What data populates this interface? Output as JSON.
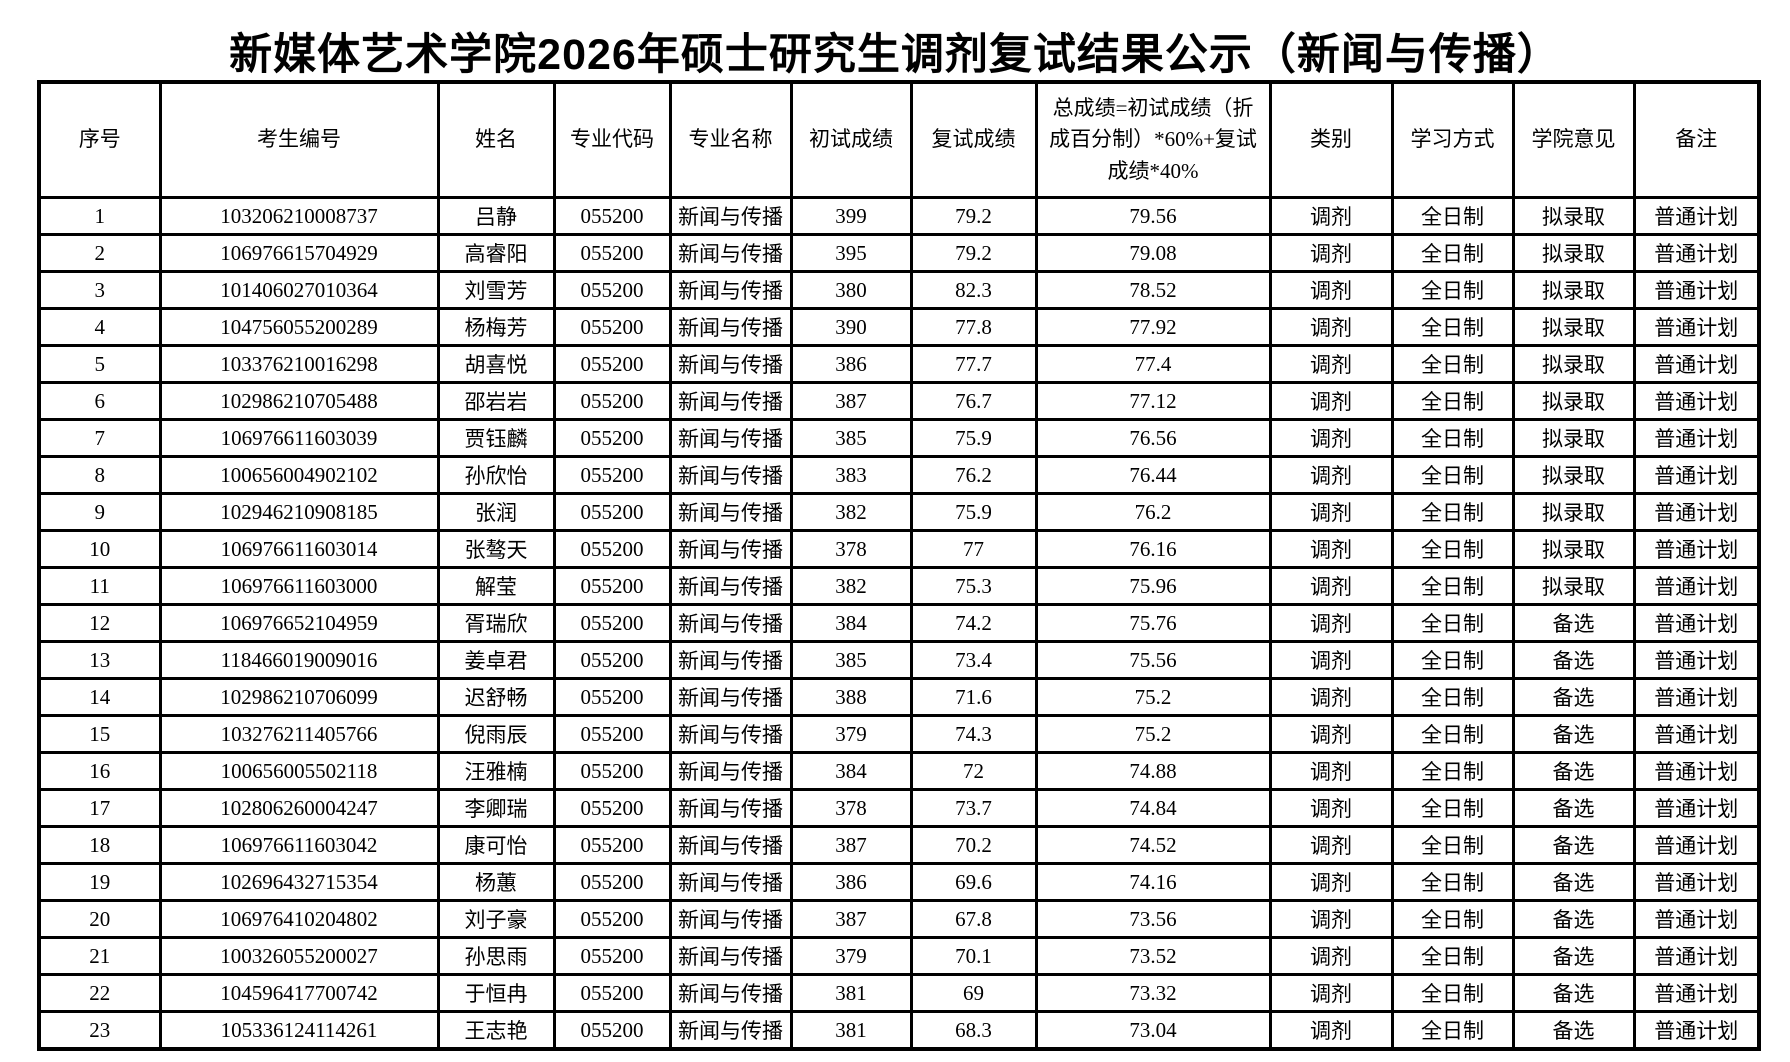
{
  "title": "新媒体艺术学院2026年硕士研究生调剂复试结果公示（新闻与传播）",
  "table": {
    "headers": [
      "序号",
      "考生编号",
      "姓名",
      "专业代码",
      "专业名称",
      "初试成绩",
      "复试成绩",
      "总成绩=初试成绩（折成百分制）*60%+复试成绩*40%",
      "类别",
      "学习方式",
      "学院意见",
      "备注"
    ],
    "column_keys": [
      "index",
      "candidate-id",
      "name",
      "major-code",
      "major-name",
      "initial-score",
      "retest-score",
      "total-score",
      "category",
      "study-mode",
      "college-opinion",
      "remark"
    ],
    "rows": [
      [
        "1",
        "103206210008737",
        "吕静",
        "055200",
        "新闻与传播",
        "399",
        "79.2",
        "79.56",
        "调剂",
        "全日制",
        "拟录取",
        "普通计划"
      ],
      [
        "2",
        "106976615704929",
        "高睿阳",
        "055200",
        "新闻与传播",
        "395",
        "79.2",
        "79.08",
        "调剂",
        "全日制",
        "拟录取",
        "普通计划"
      ],
      [
        "3",
        "101406027010364",
        "刘雪芳",
        "055200",
        "新闻与传播",
        "380",
        "82.3",
        "78.52",
        "调剂",
        "全日制",
        "拟录取",
        "普通计划"
      ],
      [
        "4",
        "104756055200289",
        "杨梅芳",
        "055200",
        "新闻与传播",
        "390",
        "77.8",
        "77.92",
        "调剂",
        "全日制",
        "拟录取",
        "普通计划"
      ],
      [
        "5",
        "103376210016298",
        "胡喜悦",
        "055200",
        "新闻与传播",
        "386",
        "77.7",
        "77.4",
        "调剂",
        "全日制",
        "拟录取",
        "普通计划"
      ],
      [
        "6",
        "102986210705488",
        "邵岩岩",
        "055200",
        "新闻与传播",
        "387",
        "76.7",
        "77.12",
        "调剂",
        "全日制",
        "拟录取",
        "普通计划"
      ],
      [
        "7",
        "106976611603039",
        "贾钰麟",
        "055200",
        "新闻与传播",
        "385",
        "75.9",
        "76.56",
        "调剂",
        "全日制",
        "拟录取",
        "普通计划"
      ],
      [
        "8",
        "100656004902102",
        "孙欣怡",
        "055200",
        "新闻与传播",
        "383",
        "76.2",
        "76.44",
        "调剂",
        "全日制",
        "拟录取",
        "普通计划"
      ],
      [
        "9",
        "102946210908185",
        "张润",
        "055200",
        "新闻与传播",
        "382",
        "75.9",
        "76.2",
        "调剂",
        "全日制",
        "拟录取",
        "普通计划"
      ],
      [
        "10",
        "106976611603014",
        "张骜天",
        "055200",
        "新闻与传播",
        "378",
        "77",
        "76.16",
        "调剂",
        "全日制",
        "拟录取",
        "普通计划"
      ],
      [
        "11",
        "106976611603000",
        "解莹",
        "055200",
        "新闻与传播",
        "382",
        "75.3",
        "75.96",
        "调剂",
        "全日制",
        "拟录取",
        "普通计划"
      ],
      [
        "12",
        "106976652104959",
        "胥瑞欣",
        "055200",
        "新闻与传播",
        "384",
        "74.2",
        "75.76",
        "调剂",
        "全日制",
        "备选",
        "普通计划"
      ],
      [
        "13",
        "118466019009016",
        "姜卓君",
        "055200",
        "新闻与传播",
        "385",
        "73.4",
        "75.56",
        "调剂",
        "全日制",
        "备选",
        "普通计划"
      ],
      [
        "14",
        "102986210706099",
        "迟舒畅",
        "055200",
        "新闻与传播",
        "388",
        "71.6",
        "75.2",
        "调剂",
        "全日制",
        "备选",
        "普通计划"
      ],
      [
        "15",
        "103276211405766",
        "倪雨辰",
        "055200",
        "新闻与传播",
        "379",
        "74.3",
        "75.2",
        "调剂",
        "全日制",
        "备选",
        "普通计划"
      ],
      [
        "16",
        "100656005502118",
        "汪雅楠",
        "055200",
        "新闻与传播",
        "384",
        "72",
        "74.88",
        "调剂",
        "全日制",
        "备选",
        "普通计划"
      ],
      [
        "17",
        "102806260004247",
        "李卿瑞",
        "055200",
        "新闻与传播",
        "378",
        "73.7",
        "74.84",
        "调剂",
        "全日制",
        "备选",
        "普通计划"
      ],
      [
        "18",
        "106976611603042",
        "康可怡",
        "055200",
        "新闻与传播",
        "387",
        "70.2",
        "74.52",
        "调剂",
        "全日制",
        "备选",
        "普通计划"
      ],
      [
        "19",
        "102696432715354",
        "杨蕙",
        "055200",
        "新闻与传播",
        "386",
        "69.6",
        "74.16",
        "调剂",
        "全日制",
        "备选",
        "普通计划"
      ],
      [
        "20",
        "106976410204802",
        "刘子豪",
        "055200",
        "新闻与传播",
        "387",
        "67.8",
        "73.56",
        "调剂",
        "全日制",
        "备选",
        "普通计划"
      ],
      [
        "21",
        "100326055200027",
        "孙思雨",
        "055200",
        "新闻与传播",
        "379",
        "70.1",
        "73.52",
        "调剂",
        "全日制",
        "备选",
        "普通计划"
      ],
      [
        "22",
        "104596417700742",
        "于恒冉",
        "055200",
        "新闻与传播",
        "381",
        "69",
        "73.32",
        "调剂",
        "全日制",
        "备选",
        "普通计划"
      ],
      [
        "23",
        "105336124114261",
        "王志艳",
        "055200",
        "新闻与传播",
        "381",
        "68.3",
        "73.04",
        "调剂",
        "全日制",
        "备选",
        "普通计划"
      ]
    ]
  }
}
